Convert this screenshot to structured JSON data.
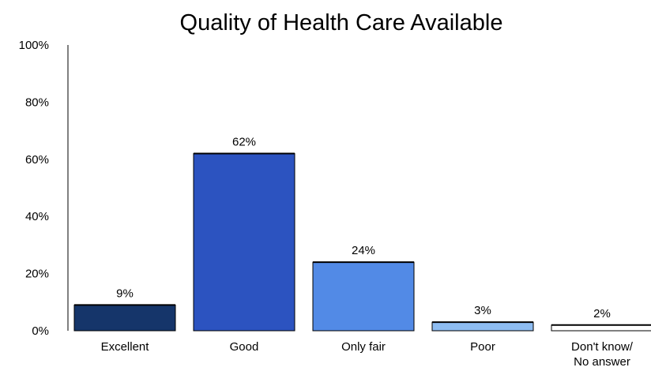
{
  "chart_data": {
    "type": "bar",
    "title": "Quality of Health Care Available",
    "xlabel": "",
    "ylabel": "",
    "categories": [
      [
        "Excellent"
      ],
      [
        "Good"
      ],
      [
        "Only fair"
      ],
      [
        "Poor"
      ],
      [
        "Don't know/",
        "No answer"
      ]
    ],
    "values": [
      9,
      62,
      24,
      3,
      2
    ],
    "data_labels": [
      "9%",
      "62%",
      "24%",
      "3%",
      "2%"
    ],
    "bar_colors": [
      "#15356a",
      "#2c53c0",
      "#528ae6",
      "#8ebdf2",
      "#ffffff"
    ],
    "ylim": [
      0,
      100
    ],
    "yticks": [
      0,
      20,
      40,
      60,
      80,
      100
    ],
    "ytick_labels": [
      "0%",
      "20%",
      "40%",
      "60%",
      "80%",
      "100%"
    ],
    "grid": false,
    "legend": "none"
  }
}
